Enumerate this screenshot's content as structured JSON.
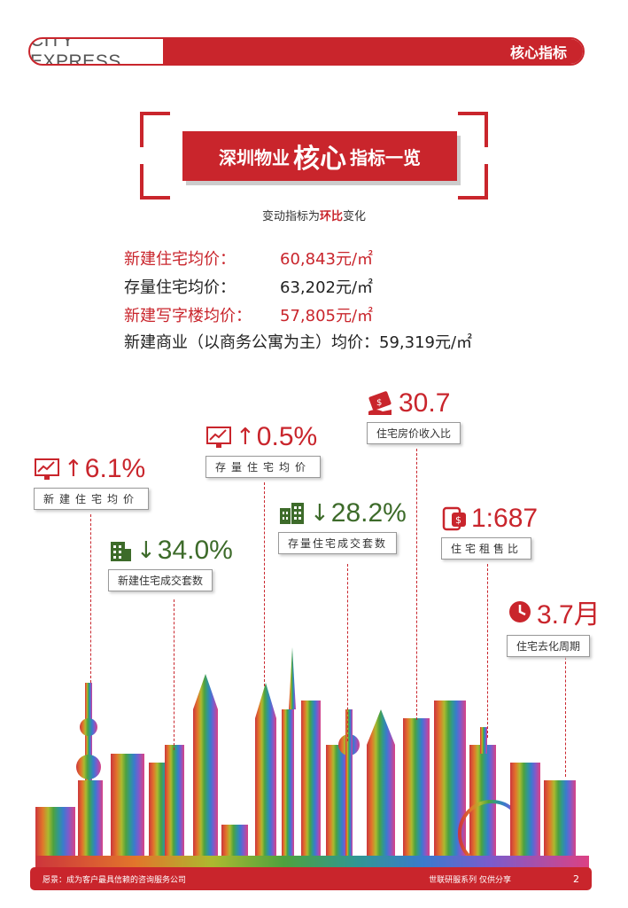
{
  "header": {
    "brand": "CITY EXPRESS",
    "section": "核心指标"
  },
  "title": {
    "part1": "深圳物业",
    "part2": "核心",
    "part3": "指标一览"
  },
  "subtitle": {
    "pre": "变动指标为",
    "highlight": "环比",
    "post": "变化"
  },
  "prices": [
    {
      "label": "新建住宅均价：",
      "value": "60,843元/㎡"
    },
    {
      "label": "存量住宅均价：",
      "value": "63,202元/㎡"
    },
    {
      "label": "新建写字楼均价：",
      "value": "57,805元/㎡"
    },
    {
      "label": "新建商业（以商务公寓为主）均价：",
      "value": "59,319元/㎡"
    }
  ],
  "indicators": {
    "new_house_price": {
      "label": "新建住宅均价",
      "value": "6.1%",
      "direction": "up",
      "icon": "chart-up-icon"
    },
    "new_house_deals": {
      "label": "新建住宅成交套数",
      "value": "34.0%",
      "direction": "down",
      "icon": "building-icon"
    },
    "used_house_price": {
      "label": "存量住宅均价",
      "value": "0.5%",
      "direction": "up",
      "icon": "chart-up-icon"
    },
    "used_house_deals": {
      "label": "存量住宅成交套数",
      "value": "28.2%",
      "direction": "down",
      "icon": "buildings-icon"
    },
    "price_income": {
      "label": "住宅房价收入比",
      "value": "30.7",
      "icon": "money-hand-icon"
    },
    "rent_ratio": {
      "label": "住宅租售比",
      "value": "1:687",
      "icon": "rent-phone-icon"
    },
    "destock": {
      "label": "住宅去化周期",
      "value": "3.7月",
      "icon": "clock-icon"
    }
  },
  "footer": {
    "slogan": "愿景：成为客户最具信赖的咨询服务公司",
    "series": "世联研服系列  仅供分享",
    "page": "2"
  },
  "colors": {
    "accent": "#c9252c",
    "green": "#3d6b2a"
  }
}
